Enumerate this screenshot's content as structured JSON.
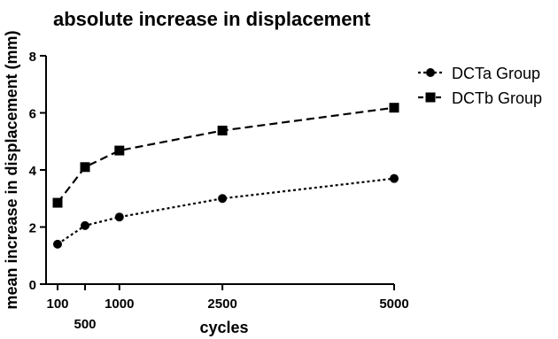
{
  "chart_data": {
    "type": "line",
    "title": "absolute increase in displacement",
    "xlabel": "cycles",
    "ylabel": "mean increase in displacement (mm)",
    "xlim": [
      100,
      5000
    ],
    "ylim": [
      0,
      8
    ],
    "x_ticks": [
      100,
      500,
      1000,
      2500,
      5000
    ],
    "x_tick_labels": [
      "100",
      "500",
      "1000",
      "2500",
      "5000"
    ],
    "y_ticks": [
      0,
      2,
      4,
      6,
      8
    ],
    "y_tick_labels": [
      "0",
      "2",
      "4",
      "6",
      "8"
    ],
    "x": [
      100,
      500,
      1000,
      2500,
      5000
    ],
    "series": [
      {
        "name": "DCTa Group",
        "values": [
          1.4,
          2.05,
          2.35,
          3.0,
          3.7
        ],
        "marker": "circle",
        "line_style": "dotted",
        "color": "#000000"
      },
      {
        "name": "DCTb Group",
        "values": [
          2.85,
          4.1,
          4.68,
          5.38,
          6.18
        ],
        "marker": "square",
        "line_style": "dashed",
        "color": "#000000"
      }
    ],
    "grid": false,
    "legend_position": "right"
  }
}
